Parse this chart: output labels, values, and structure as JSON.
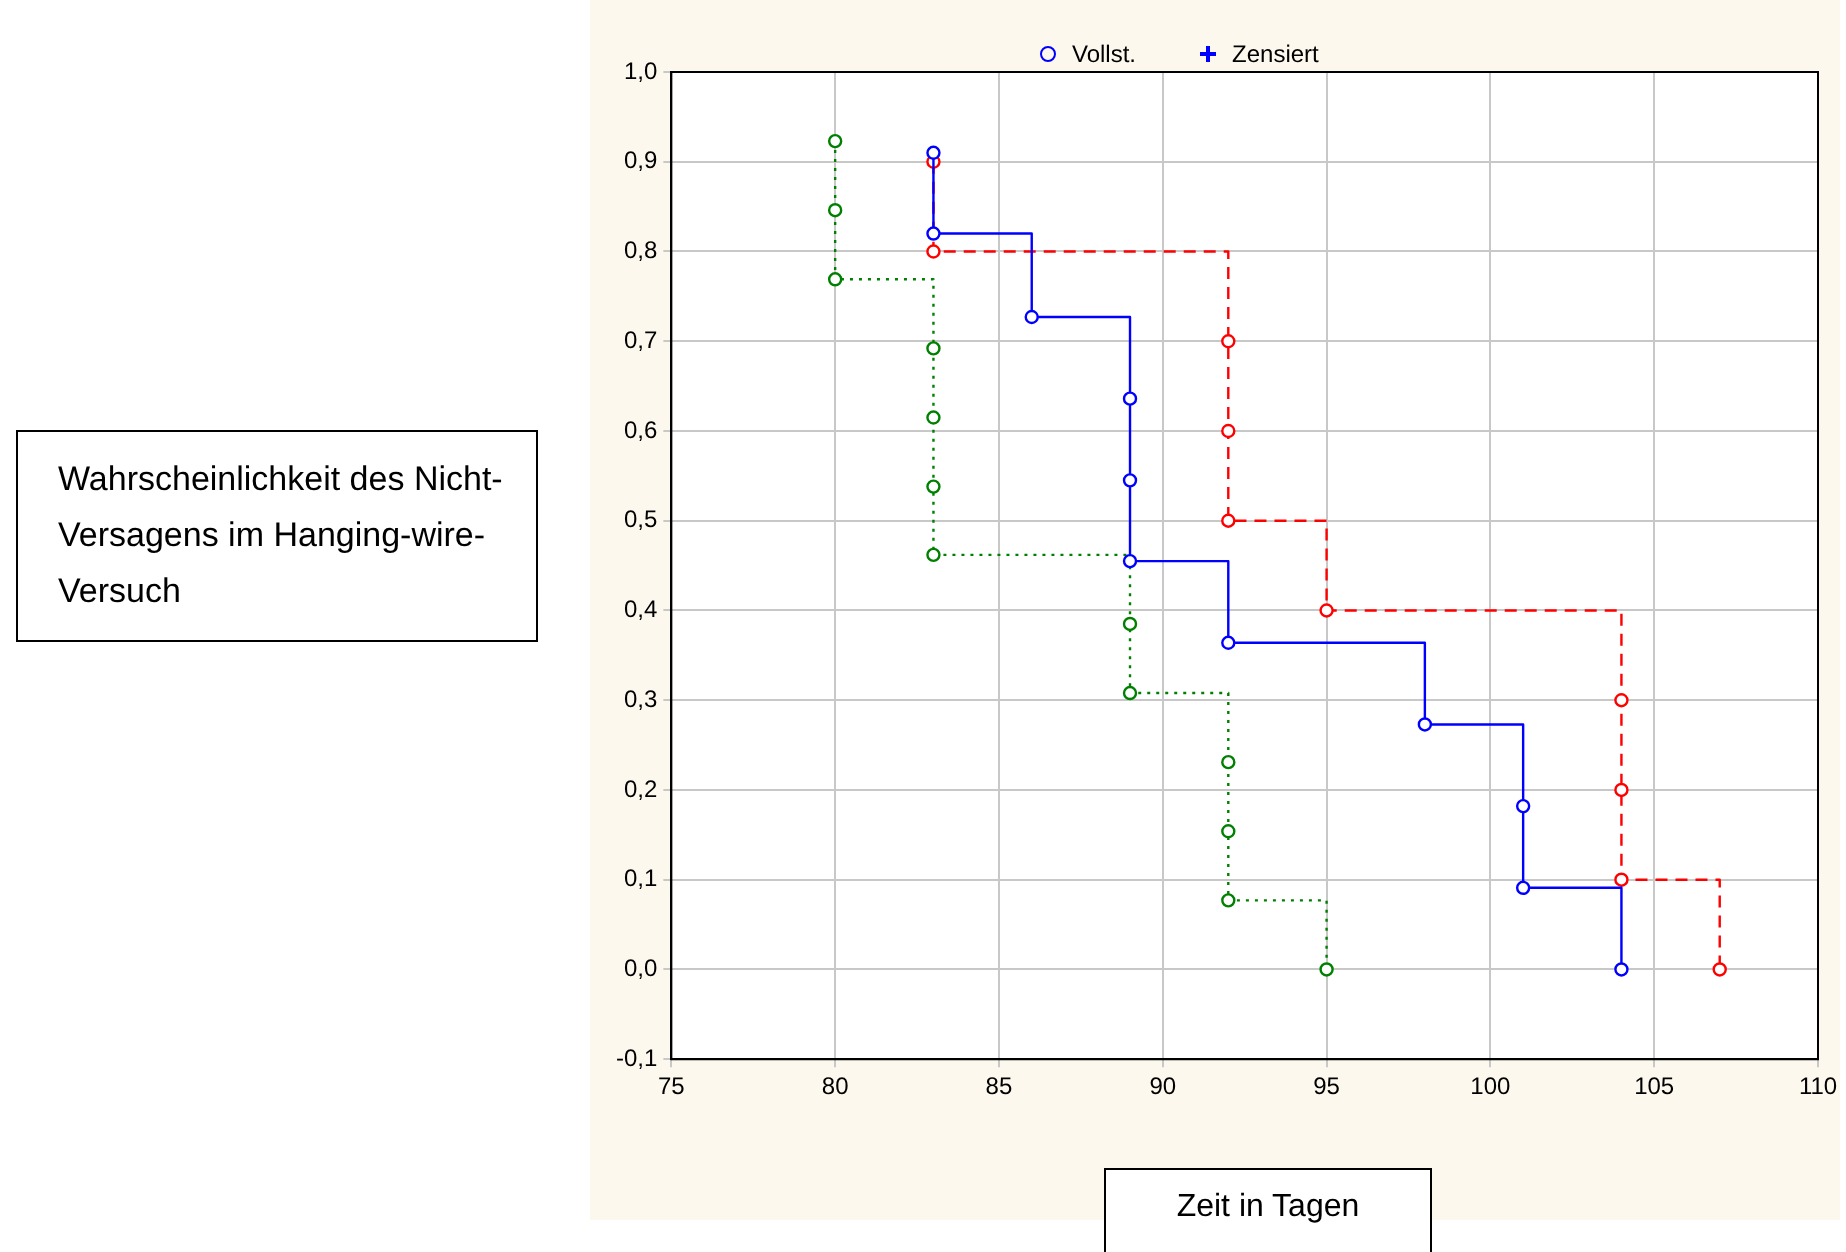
{
  "chart_data": {
    "type": "step",
    "xlabel": "Zeit in Tagen",
    "ylabel": "Wahrscheinlichkeit des Nicht-Versagens im Hanging-wire-Versuch",
    "annotations": [
      "Vollst.",
      "Zensiert"
    ],
    "xlim": [
      75,
      110
    ],
    "xticks": [
      75,
      80,
      85,
      90,
      95,
      100,
      105,
      110
    ],
    "ylim": [
      -0.1,
      1.0
    ],
    "yticks": [
      {
        "value": -0.1,
        "label": "-0,1"
      },
      {
        "value": 0,
        "label": "0,0"
      },
      {
        "value": 0.1,
        "label": "0,1"
      },
      {
        "value": 0.2,
        "label": "0,2"
      },
      {
        "value": 0.3,
        "label": "0,3"
      },
      {
        "value": 0.4,
        "label": "0,4"
      },
      {
        "value": 0.5,
        "label": "0,5"
      },
      {
        "value": 0.6,
        "label": "0,6"
      },
      {
        "value": 0.7,
        "label": "0,7"
      },
      {
        "value": 0.8,
        "label": "0,8"
      },
      {
        "value": 0.9,
        "label": "0,9"
      },
      {
        "value": 1.0,
        "label": "1,0"
      }
    ],
    "grid": true,
    "legend": false,
    "marker": "circle",
    "series": [
      {
        "color": "#0000ff",
        "line_style": "solid",
        "x": [
          83,
          83,
          86,
          89,
          89,
          89,
          92,
          98,
          101,
          101,
          104
        ],
        "values": [
          0.91,
          0.82,
          0.727,
          0.636,
          0.545,
          0.455,
          0.364,
          0.273,
          0.182,
          0.091,
          0.0
        ]
      },
      {
        "color": "#ff0000",
        "line_style": "dashed",
        "x": [
          83,
          83,
          92,
          92,
          92,
          95,
          104,
          104,
          104,
          107
        ],
        "values": [
          0.9,
          0.8,
          0.7,
          0.6,
          0.5,
          0.4,
          0.3,
          0.2,
          0.1,
          0.0
        ]
      },
      {
        "color": "#008000",
        "line_style": "dotted",
        "x": [
          80,
          80,
          80,
          83,
          83,
          83,
          83,
          89,
          89,
          92,
          92,
          92,
          95
        ],
        "values": [
          0.923,
          0.846,
          0.769,
          0.692,
          0.615,
          0.538,
          0.462,
          0.385,
          0.308,
          0.231,
          0.154,
          0.077,
          0.0
        ]
      }
    ]
  }
}
